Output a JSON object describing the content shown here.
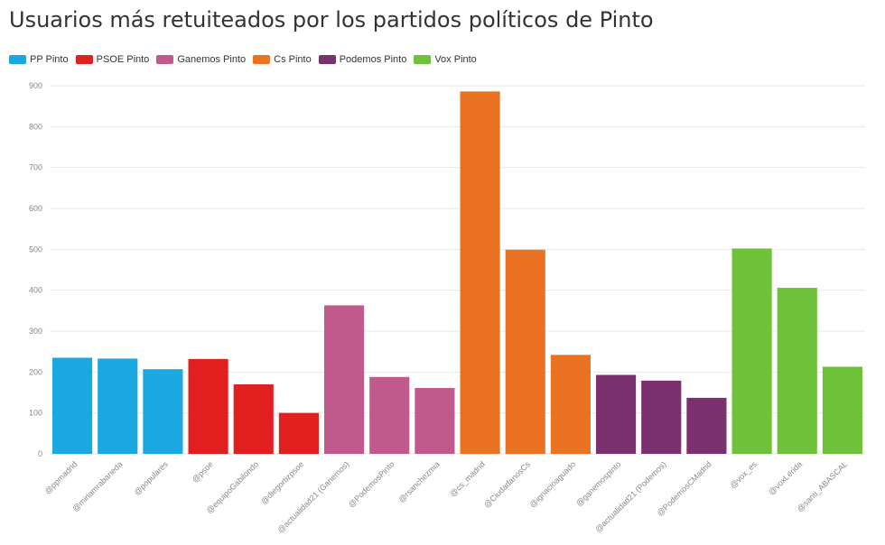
{
  "chart_data": {
    "type": "bar",
    "title": "Usuarios más retuiteados por los partidos políticos de Pinto",
    "xlabel": "",
    "ylabel": "",
    "ylim": [
      0,
      900
    ],
    "yticks": [
      0,
      100,
      200,
      300,
      400,
      500,
      600,
      700,
      800,
      900
    ],
    "grid": true,
    "legend_position": "top-left",
    "categories": [
      "@ppmadrid",
      "@miriamrabaneda",
      "@populares",
      "@psoe",
      "@equipoGabilondo",
      "@diegortizpsoe",
      "@actualidad21 (Ganemos)",
      "@PodemosPinto",
      "@rsanchezmia",
      "@cs_madrid",
      "@CiudadanosCs",
      "@ignacioaguado",
      "@ganemospinto",
      "@actualidad21 (Podemos)",
      "@PodemosCMadrid",
      "@vox_es",
      "@voxLerida",
      "@santi_ABASCAL"
    ],
    "series": [
      {
        "name": "PP Pinto",
        "color": "#1ba8e0",
        "values": [
          235,
          233,
          207,
          null,
          null,
          null,
          null,
          null,
          null,
          null,
          null,
          null,
          null,
          null,
          null,
          null,
          null,
          null
        ]
      },
      {
        "name": "PSOE Pinto",
        "color": "#e21f1f",
        "values": [
          null,
          null,
          null,
          232,
          170,
          100,
          null,
          null,
          null,
          null,
          null,
          null,
          null,
          null,
          null,
          null,
          null,
          null
        ]
      },
      {
        "name": "Ganemos Pinto",
        "color": "#c15a8c",
        "values": [
          null,
          null,
          null,
          null,
          null,
          null,
          363,
          188,
          161,
          null,
          null,
          null,
          null,
          null,
          null,
          null,
          null,
          null
        ]
      },
      {
        "name": "Cs Pinto",
        "color": "#ec7223",
        "values": [
          null,
          null,
          null,
          null,
          null,
          null,
          null,
          null,
          null,
          886,
          499,
          242,
          null,
          null,
          null,
          null,
          null,
          null
        ]
      },
      {
        "name": "Podemos Pinto",
        "color": "#7a316d",
        "values": [
          null,
          null,
          null,
          null,
          null,
          null,
          null,
          null,
          null,
          null,
          null,
          null,
          193,
          179,
          137,
          null,
          null,
          null
        ]
      },
      {
        "name": "Vox Pinto",
        "color": "#70c13a",
        "values": [
          null,
          null,
          null,
          null,
          null,
          null,
          null,
          null,
          null,
          null,
          null,
          null,
          null,
          null,
          null,
          502,
          406,
          213
        ]
      }
    ]
  }
}
